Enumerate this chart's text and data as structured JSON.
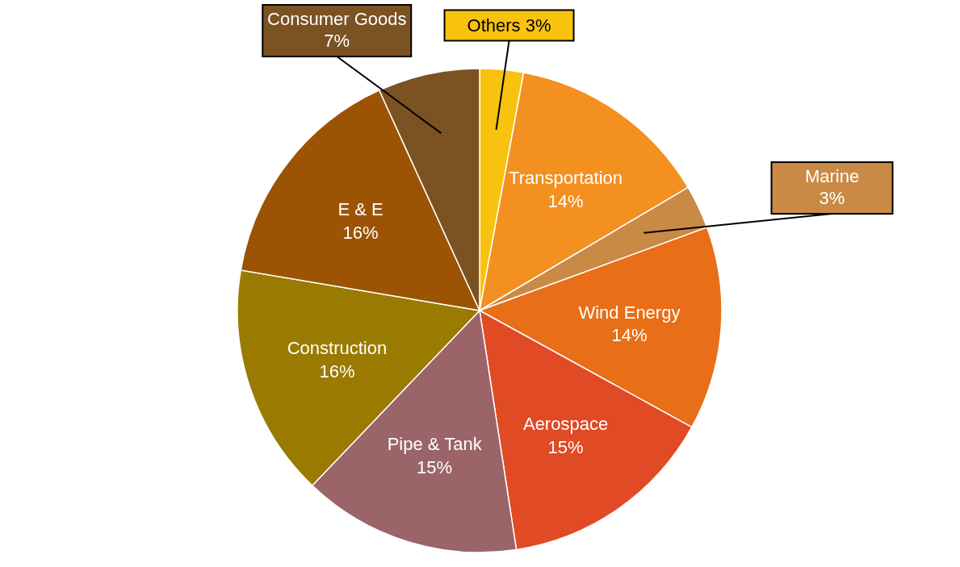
{
  "chart_data": {
    "type": "pie",
    "categories": [
      "Others",
      "Transportation",
      "Marine",
      "Wind Energy",
      "Aerospace",
      "Pipe & Tank",
      "Construction",
      "E & E",
      "Consumer Goods"
    ],
    "values": [
      3,
      14,
      3,
      14,
      15,
      15,
      16,
      16,
      7
    ],
    "value_labels": [
      "3%",
      "14%",
      "3%",
      "14%",
      "15%",
      "15%",
      "16%",
      "16%",
      "7%"
    ],
    "colors": [
      "#f8c20e",
      "#f39020",
      "#c98a45",
      "#e86e18",
      "#e04a25",
      "#9a6468",
      "#9a7a00",
      "#9c5404",
      "#7b5222"
    ]
  }
}
